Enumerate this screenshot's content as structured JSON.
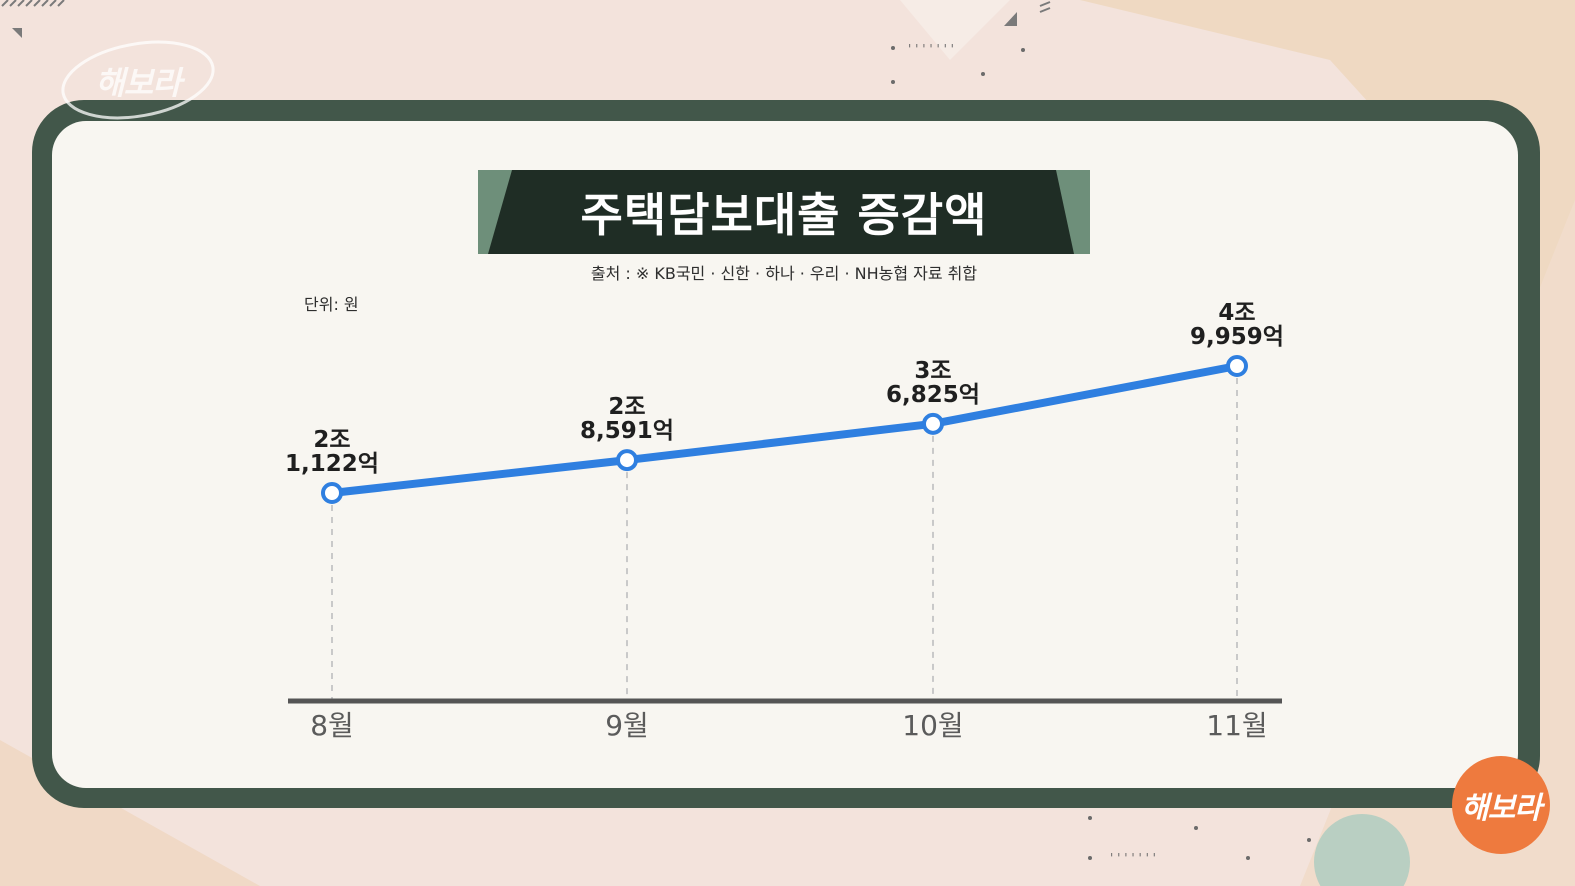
{
  "brand": {
    "logo_text": "해보라",
    "accent": "#ee7a3e",
    "frame_color": "#42574a"
  },
  "header": {
    "title": "주택담보대출 증감액",
    "source": "출처 : ※ KB국민 · 신한 · 하나 · 우리 · NH농협 자료 취합",
    "unit": "단위: 원"
  },
  "chart_data": {
    "type": "line",
    "title": "주택담보대출 증감액",
    "categories": [
      "8월",
      "9월",
      "10월",
      "11월"
    ],
    "values": [
      21122,
      28591,
      36825,
      49959
    ],
    "value_unit": "억원",
    "labels": [
      [
        "2조",
        "1,122억"
      ],
      [
        "2조",
        "8,591억"
      ],
      [
        "3조",
        "6,825억"
      ],
      [
        "4조",
        "9,959억"
      ]
    ],
    "line_color": "#2f7fe0",
    "marker_fill": "#ffffff",
    "grid": false,
    "legend": "none"
  }
}
